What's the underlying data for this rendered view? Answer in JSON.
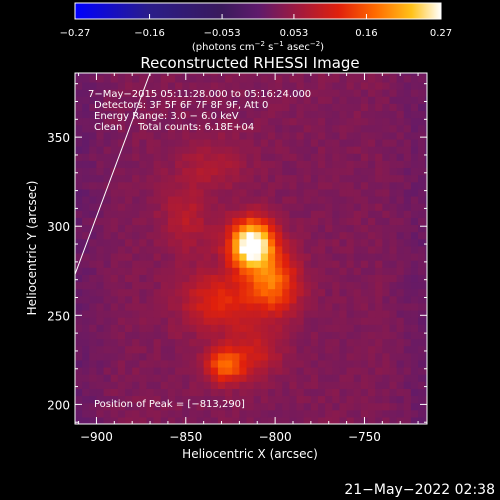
{
  "chart_data": {
    "type": "heatmap",
    "title": "Reconstructed RHESSI Image",
    "xlabel": "Heliocentric X (arcsec)",
    "ylabel": "Heliocentric Y (arcsec)",
    "xlim": [
      -912,
      -715
    ],
    "ylim": [
      189,
      386
    ],
    "x_ticks": [
      -900,
      -850,
      -800,
      -750
    ],
    "x_tick_labels": [
      "−900",
      "−850",
      "−800",
      "−750"
    ],
    "y_ticks": [
      200,
      250,
      300,
      350
    ],
    "y_tick_labels": [
      "200",
      "250",
      "300",
      "350"
    ],
    "colorbar": {
      "range": [
        -0.27,
        0.27
      ],
      "ticks": [
        -0.27,
        -0.16,
        -0.053,
        0.053,
        0.16,
        0.27
      ],
      "tick_labels": [
        "−0.27",
        "−0.16",
        "−0.053",
        "0.053",
        "0.16",
        "0.27"
      ],
      "units_prefix": "(photons cm",
      "units_sup1": "−2",
      "units_mid": " s",
      "units_sup2": "−1",
      "units_mid2": " asec",
      "units_sup3": "−2",
      "units_suffix": ")",
      "colormap": "red-temperature"
    },
    "annotations": {
      "time_range": "7−May−2015 05:11:28.000 to 05:16:24.000",
      "detectors": "Detectors: 3F 5F 6F 7F 8F 9F, Att 0",
      "energy_range": "Energy Range: 3.0 − 6.0 keV",
      "clean_label": "Clean",
      "total_counts": "Total counts: 6.18E+04",
      "peak_position": "Position of Peak = [−813,290]"
    },
    "sources": [
      {
        "x": -813,
        "y": 290,
        "peak": 0.27,
        "sx": 9,
        "sy": 10
      },
      {
        "x": -800,
        "y": 268,
        "peak": 0.13,
        "sx": 10,
        "sy": 12
      },
      {
        "x": -830,
        "y": 258,
        "peak": 0.09,
        "sx": 16,
        "sy": 12
      },
      {
        "x": -828,
        "y": 222,
        "peak": 0.14,
        "sx": 8,
        "sy": 7
      },
      {
        "x": -810,
        "y": 230,
        "peak": 0.06,
        "sx": 10,
        "sy": 10
      },
      {
        "x": -850,
        "y": 305,
        "peak": 0.05,
        "sx": 10,
        "sy": 14
      },
      {
        "x": -835,
        "y": 335,
        "peak": 0.04,
        "sx": 14,
        "sy": 10
      }
    ],
    "limb_line": [
      [
        -912,
        273
      ],
      [
        -870,
        386
      ]
    ],
    "background_level": 0.03
  },
  "timestamp": "21−May−2022 02:38"
}
